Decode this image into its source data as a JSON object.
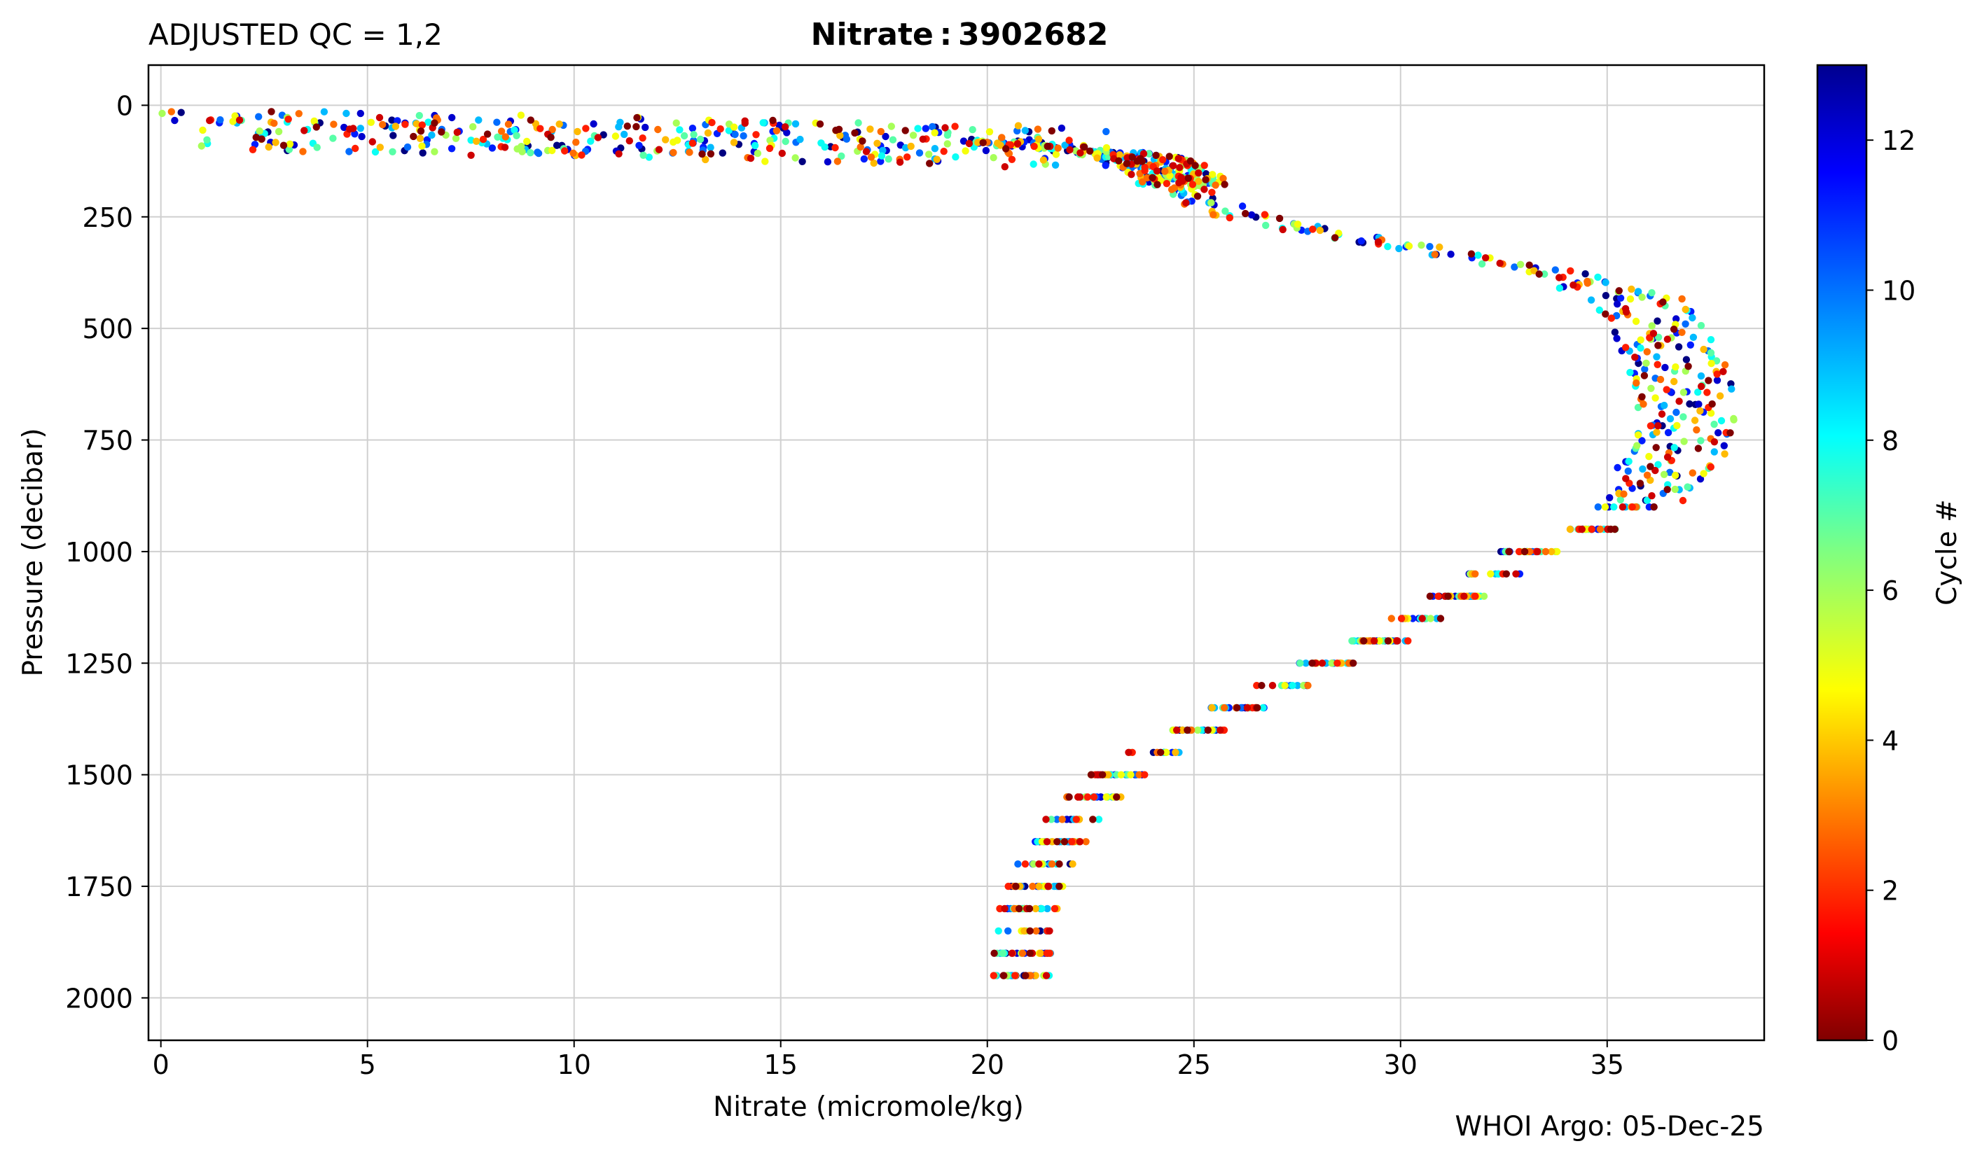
{
  "chart_data": {
    "type": "scatter",
    "title_left": "ADJUSTED QC = 1,2",
    "title_center": "Nitrate : 3902682",
    "xlabel": "Nitrate  (micromole/kg)",
    "ylabel": "Pressure  (decibar)",
    "footer": "WHOI Argo: 05-Dec-25",
    "colorbar_label": "Cycle #",
    "xlim": [
      -0.3,
      38.8
    ],
    "ylim": [
      2095,
      -90
    ],
    "y_inverted": true,
    "grid": true,
    "x_ticks": [
      0,
      5,
      10,
      15,
      20,
      25,
      30,
      35
    ],
    "y_ticks": [
      0,
      250,
      500,
      750,
      1000,
      1250,
      1500,
      1750,
      2000
    ],
    "colorbar": {
      "colormap": "jet",
      "range": [
        0,
        13
      ],
      "ticks": [
        0,
        2,
        4,
        6,
        8,
        10,
        12
      ]
    },
    "profile": [
      [
        2.0,
        10
      ],
      [
        2.5,
        25
      ],
      [
        3.5,
        30
      ],
      [
        5.0,
        30
      ],
      [
        7.5,
        35
      ],
      [
        10.5,
        40
      ],
      [
        13.0,
        50
      ],
      [
        15.5,
        55
      ],
      [
        17.5,
        65
      ],
      [
        19.0,
        75
      ],
      [
        20.5,
        85
      ],
      [
        22.0,
        95
      ],
      [
        23.2,
        110
      ],
      [
        24.0,
        125
      ],
      [
        24.6,
        160
      ],
      [
        25.0,
        200
      ],
      [
        25.8,
        240
      ],
      [
        27.0,
        265
      ],
      [
        28.5,
        290
      ],
      [
        30.5,
        320
      ],
      [
        32.5,
        355
      ],
      [
        34.5,
        390
      ],
      [
        35.8,
        440
      ],
      [
        36.3,
        500
      ],
      [
        36.6,
        560
      ],
      [
        36.8,
        620
      ],
      [
        36.9,
        700
      ],
      [
        36.8,
        760
      ],
      [
        36.3,
        830
      ],
      [
        35.6,
        890
      ],
      [
        34.6,
        950
      ],
      [
        33.1,
        1000
      ],
      [
        32.3,
        1050
      ],
      [
        31.4,
        1100
      ],
      [
        30.3,
        1150
      ],
      [
        29.5,
        1200
      ],
      [
        28.2,
        1250
      ],
      [
        27.2,
        1300
      ],
      [
        26.1,
        1350
      ],
      [
        25.1,
        1400
      ],
      [
        24.0,
        1450
      ],
      [
        23.2,
        1500
      ],
      [
        22.6,
        1550
      ],
      [
        22.1,
        1600
      ],
      [
        21.8,
        1650
      ],
      [
        21.4,
        1700
      ],
      [
        21.2,
        1750
      ],
      [
        21.0,
        1800
      ],
      [
        20.9,
        1850
      ],
      [
        20.85,
        1900
      ],
      [
        20.8,
        1950
      ],
      [
        20.8,
        2000
      ]
    ],
    "points_per_cycle": 105,
    "cycles": [
      0,
      1,
      2,
      3,
      4,
      5,
      6,
      7,
      8,
      9,
      10,
      11,
      12,
      13
    ]
  }
}
